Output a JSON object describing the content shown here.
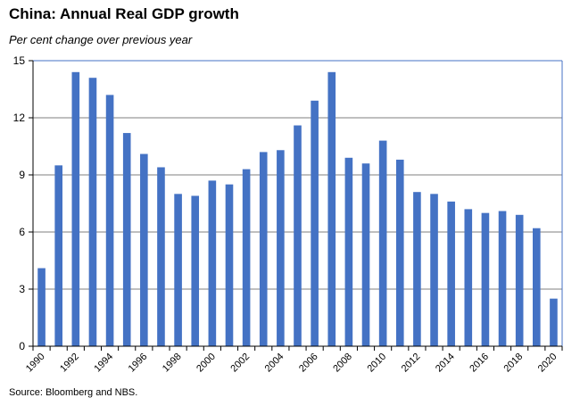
{
  "title": "China: Annual Real GDP growth",
  "subtitle": "Per cent change over previous year",
  "source": "Source: Bloomberg and NBS.",
  "colors": {
    "bar": "#4472C4",
    "grid": "#7f7f7f",
    "frame": "#4472C4",
    "axis": "#000000"
  },
  "chart_data": {
    "type": "bar",
    "title": "China: Annual Real GDP growth",
    "subtitle": "Per cent change over previous year",
    "xlabel": "",
    "ylabel": "",
    "ylim": [
      0,
      15
    ],
    "yticks": [
      0,
      3,
      6,
      9,
      12,
      15
    ],
    "grid": true,
    "legend": "none",
    "categories": [
      "1990",
      "1991",
      "1992",
      "1993",
      "1994",
      "1995",
      "1996",
      "1997",
      "1998",
      "1999",
      "2000",
      "2001",
      "2002",
      "2003",
      "2004",
      "2005",
      "2006",
      "2007",
      "2008",
      "2009",
      "2010",
      "2011",
      "2012",
      "2013",
      "2014",
      "2015",
      "2016",
      "2017",
      "2018",
      "2019",
      "2020"
    ],
    "xtick_labels": [
      "1990",
      "1992",
      "1994",
      "1996",
      "1998",
      "2000",
      "2002",
      "2004",
      "2006",
      "2008",
      "2010",
      "2012",
      "2014",
      "2016",
      "2018",
      "2020"
    ],
    "values": [
      4.1,
      9.5,
      14.4,
      14.1,
      13.2,
      11.2,
      10.1,
      9.4,
      8.0,
      7.9,
      8.7,
      8.5,
      9.3,
      10.2,
      10.3,
      11.6,
      12.9,
      14.4,
      9.9,
      9.6,
      10.8,
      9.8,
      8.1,
      8.0,
      7.6,
      7.2,
      7.0,
      7.1,
      6.9,
      6.2,
      2.5
    ]
  }
}
